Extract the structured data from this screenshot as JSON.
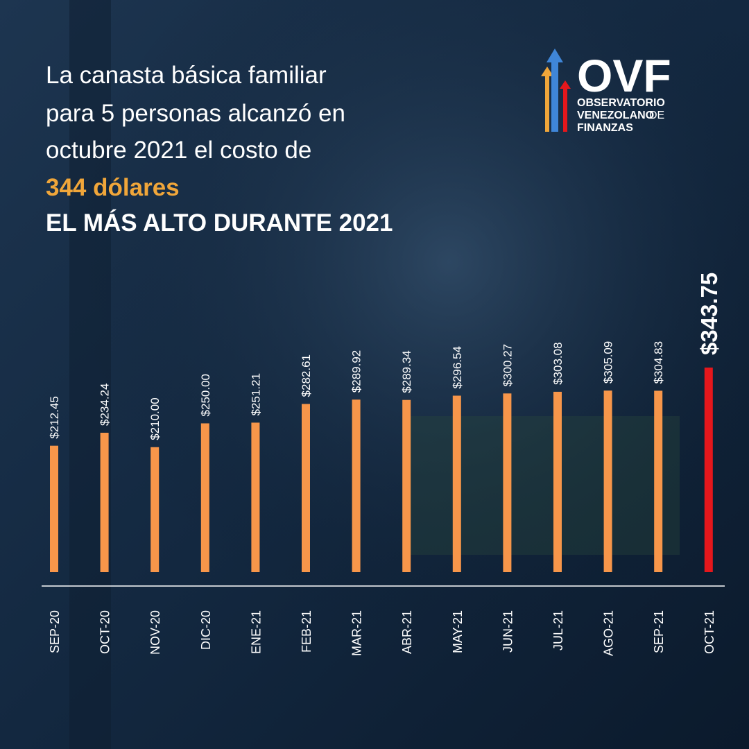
{
  "chart_data": {
    "type": "bar",
    "title": [
      "La canasta básica familiar",
      "para 5 personas  alcanzó en",
      "octubre 2021 el costo de"
    ],
    "highlight": "344 dólares",
    "subtitle": "EL MÁS ALTO DURANTE 2021",
    "logo": {
      "acronym": "OVF",
      "lines": [
        "OBSERVATORIO",
        "VENEZOLANO",
        "DE",
        "FINANZAS"
      ]
    },
    "categories": [
      "SEP-20",
      "OCT-20",
      "NOV-20",
      "DIC-20",
      "ENE-21",
      "FEB-21",
      "MAR-21",
      "ABR-21",
      "MAY-21",
      "JUN-21",
      "JUL-21",
      "AGO-21",
      "SEP-21",
      "OCT-21"
    ],
    "values": [
      212.45,
      234.24,
      210.0,
      250.0,
      251.21,
      282.61,
      289.92,
      289.34,
      296.54,
      300.27,
      303.08,
      305.09,
      304.83,
      343.75
    ],
    "value_labels": [
      "$212.45",
      "$234.24",
      "$210.00",
      "$250.00",
      "$251.21",
      "$282.61",
      "$289.92",
      "$289.34",
      "$296.54",
      "$300.27",
      "$303.08",
      "$305.09",
      "$304.83",
      "$343.75"
    ],
    "colors": [
      "#f7964a",
      "#f7964a",
      "#f7964a",
      "#f7964a",
      "#f7964a",
      "#f7964a",
      "#f7964a",
      "#f7964a",
      "#f7964a",
      "#f7964a",
      "#f7964a",
      "#f7964a",
      "#f7964a",
      "#e5171c"
    ]
  }
}
